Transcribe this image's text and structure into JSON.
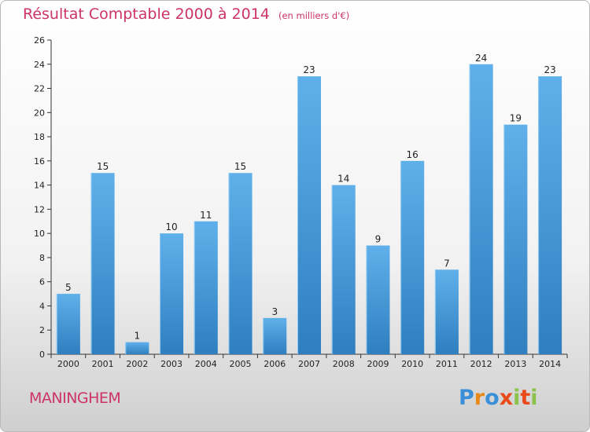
{
  "header": {
    "title": "Résultat Comptable 2000 à 2014",
    "subtitle": "(en milliers d'€)"
  },
  "footer": {
    "commune": "MANINGHEM",
    "logo": "Proxiti"
  },
  "colors": {
    "title": "#cc3366",
    "bar_light": "#5fb0ea",
    "bar_dark": "#2f7fc0",
    "logo_letters": [
      "#3a8fd8",
      "#e88a1a",
      "#3a8fd8",
      "#e84a1a",
      "#8bc34a",
      "#e84a1a",
      "#8bc34a"
    ]
  },
  "chart_data": {
    "type": "bar",
    "categories": [
      "2000",
      "2001",
      "2002",
      "2003",
      "2004",
      "2005",
      "2006",
      "2007",
      "2008",
      "2009",
      "2010",
      "2011",
      "2012",
      "2013",
      "2014"
    ],
    "values": [
      5,
      15,
      1,
      10,
      11,
      15,
      3,
      23,
      14,
      9,
      16,
      7,
      24,
      19,
      23
    ],
    "data_labels": [
      "5",
      "15",
      "1",
      "10",
      "11",
      "15",
      "3",
      "23",
      "14",
      "9",
      "16",
      "7",
      "24",
      "19",
      "23"
    ],
    "y_ticks": [
      "0",
      "2",
      "4",
      "6",
      "8",
      "10",
      "12",
      "14",
      "16",
      "18",
      "20",
      "22",
      "24",
      "26"
    ],
    "ylim": [
      0,
      26
    ],
    "grid": false,
    "legend": "none",
    "title": "Résultat Comptable 2000 à 2014",
    "xlabel": "",
    "ylabel": ""
  }
}
